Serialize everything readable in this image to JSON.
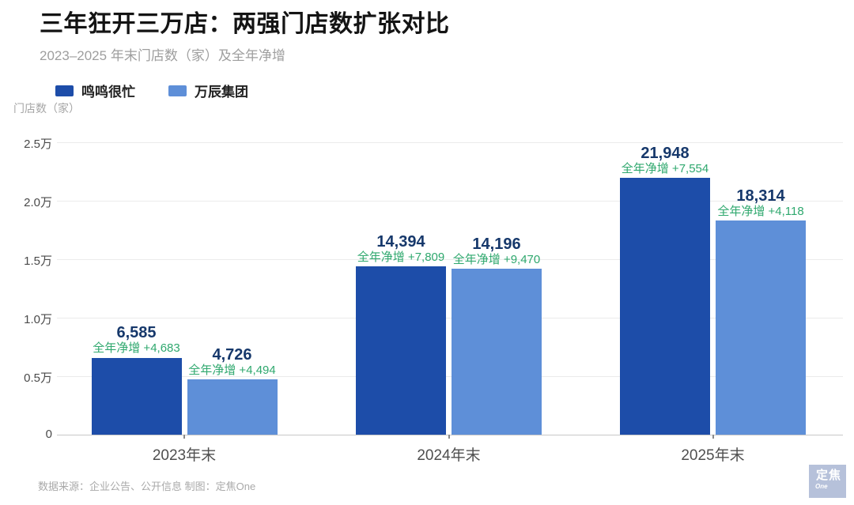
{
  "header": {
    "title": "三年狂开三万店：两强门店数扩张对比",
    "subtitle": "2023–2025 年末门店数（家）及全年净增"
  },
  "legend": {
    "items": [
      {
        "label": "鸣鸣很忙",
        "color": "#1d4da9"
      },
      {
        "label": "万辰集团",
        "color": "#5e8fd8"
      }
    ]
  },
  "y_axis_title": "门店数（家）",
  "footer": {
    "source_text": "数据来源：企业公告、公开信息 制图：定焦One"
  },
  "logo": {
    "title": "定焦",
    "subtitle": "One",
    "bg_color": "#b6c1da"
  },
  "colors": {
    "series_dark": "#1d4da9",
    "series_light": "#5e8fd8",
    "value_label": "#16386b",
    "increase_label": "#2fa86e"
  },
  "chart_data": {
    "type": "bar",
    "title": "三年狂开三万店：两强门店数扩张对比",
    "subtitle": "2023–2025 年末门店数（家）及全年净增",
    "ylabel": "门店数（家）",
    "categories": [
      "2023年末",
      "2024年末",
      "2025年末"
    ],
    "series": [
      {
        "name": "鸣鸣很忙",
        "color": "#1d4da9",
        "values": [
          6585,
          14394,
          21948
        ],
        "value_labels": [
          "6,585",
          "14,394",
          "21,948"
        ],
        "annotations": [
          "全年净增 +4,683",
          "全年净增 +7,809",
          "全年净增 +7,554"
        ]
      },
      {
        "name": "万辰集团",
        "color": "#5e8fd8",
        "values": [
          4726,
          14196,
          18314
        ],
        "value_labels": [
          "4,726",
          "14,196",
          "18,314"
        ],
        "annotations": [
          "全年净增 +4,494",
          "全年净增 +9,470",
          "全年净增 +4,118"
        ]
      }
    ],
    "ylim": [
      0,
      25000
    ],
    "y_ticks": [
      {
        "value": 25000,
        "label": "2.5万"
      },
      {
        "value": 20000,
        "label": "2.0万"
      },
      {
        "value": 15000,
        "label": "1.5万"
      },
      {
        "value": 10000,
        "label": "1.0万"
      },
      {
        "value": 5000,
        "label": "0.5万"
      },
      {
        "value": 0,
        "label": "0"
      }
    ],
    "grid": true,
    "legend_position": "top-left"
  }
}
